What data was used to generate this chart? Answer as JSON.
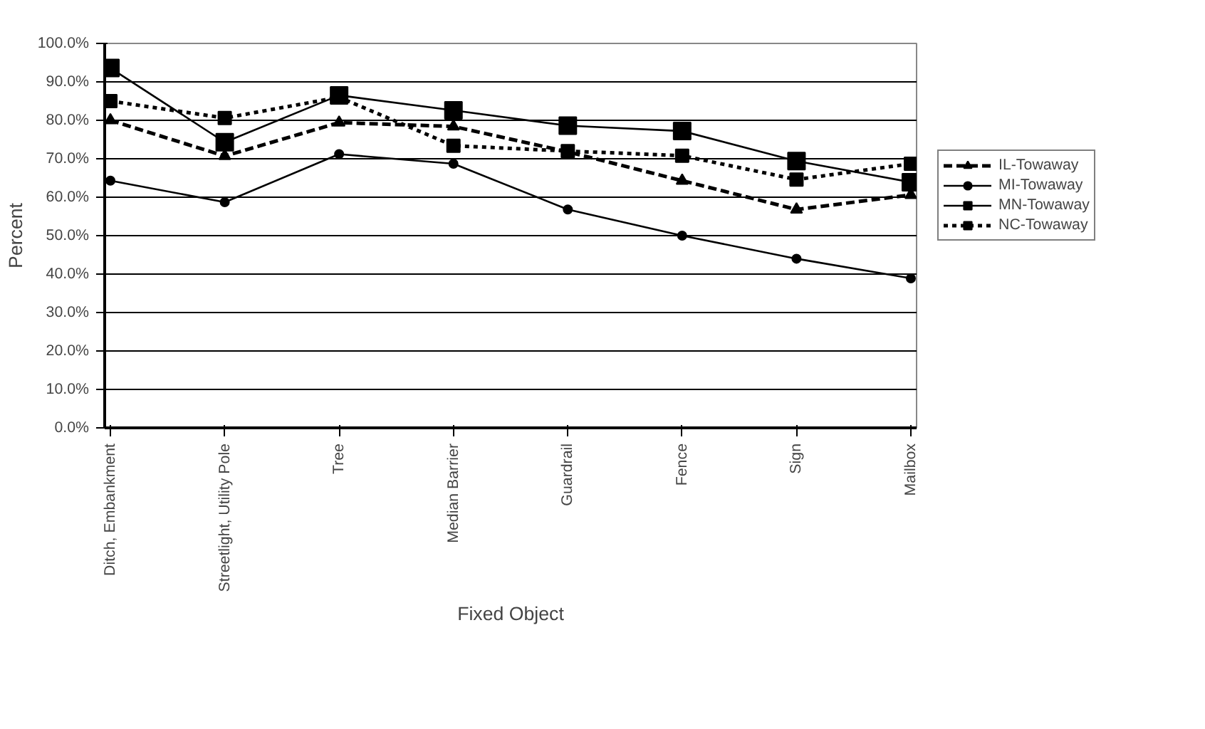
{
  "chart_data": {
    "type": "line",
    "xlabel": "Fixed Object",
    "ylabel": "Percent",
    "categories": [
      "Ditch, Embankment",
      "Streetlight, Utility Pole",
      "Tree",
      "Median Barrier",
      "Guardrail",
      "Fence",
      "Sign",
      "Mailbox"
    ],
    "ylim": [
      0,
      100
    ],
    "yticks": [
      {
        "value": 0,
        "label": "0.0%"
      },
      {
        "value": 10,
        "label": "10.0%"
      },
      {
        "value": 20,
        "label": "20.0%"
      },
      {
        "value": 30,
        "label": "30.0%"
      },
      {
        "value": 40,
        "label": "40.0%"
      },
      {
        "value": 50,
        "label": "50.0%"
      },
      {
        "value": 60,
        "label": "60.0%"
      },
      {
        "value": 70,
        "label": "70.0%"
      },
      {
        "value": 80,
        "label": "80.0%"
      },
      {
        "value": 90,
        "label": "90.0%"
      },
      {
        "value": 100,
        "label": "100.0%"
      }
    ],
    "grid": "y",
    "legend": "right",
    "series": [
      {
        "name": "IL-Towaway",
        "color": "#000000",
        "marker": "triangle",
        "line_style": "dashed",
        "values": [
          80,
          70.7,
          79.4,
          78.4,
          71.8,
          64.3,
          56.8,
          60.6
        ]
      },
      {
        "name": "MI-Towaway",
        "color": "#000000",
        "marker": "circle",
        "line_style": "solid",
        "values": [
          64.3,
          58.7,
          71.2,
          68.7,
          56.8,
          50,
          44,
          38.9
        ]
      },
      {
        "name": "MN-Towaway",
        "color": "#000000",
        "marker": "square",
        "line_style": "solid",
        "values": [
          93.6,
          74.3,
          86.5,
          82.6,
          78.6,
          77.2,
          69.4,
          63.9
        ]
      },
      {
        "name": "NC-Towaway",
        "color": "#000000",
        "marker": "square",
        "line_style": "dotted",
        "values": [
          85,
          80.6,
          86,
          73.4,
          72,
          70.8,
          64.6,
          68.7
        ]
      }
    ]
  }
}
